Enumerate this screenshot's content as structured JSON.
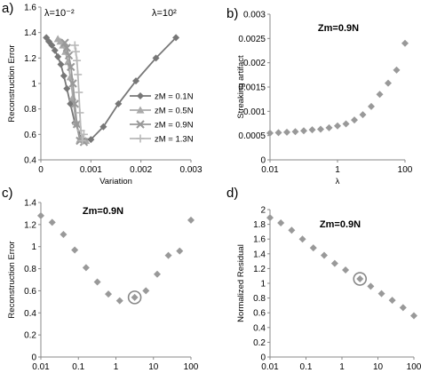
{
  "chart_data": [
    {
      "panel": "a)",
      "type": "line",
      "title": "",
      "xlabel": "Variation",
      "ylabel": "Reconstruction Error",
      "xlim": [
        0,
        0.003
      ],
      "ylim": [
        0.4,
        1.6
      ],
      "xticks": [
        "0",
        "0.001",
        "0.002",
        "0.003"
      ],
      "yticks": [
        "0.4",
        "0.6",
        "0.8",
        "1",
        "1.2",
        "1.4",
        "1.6"
      ],
      "annotations": [
        {
          "text": "λ=10⁻²",
          "pos": "top-left"
        },
        {
          "text": "λ=10²",
          "pos": "top-right"
        }
      ],
      "legend_position": "right",
      "colors": {
        "zM = 0.1N": "#777777",
        "zM = 0.5N": "#aaaaaa",
        "zM = 0.9N": "#999999",
        "zM = 1.3N": "#b9b9b9"
      },
      "series": [
        {
          "name": "zM = 0.1N",
          "marker": "diamond",
          "x": [
            0.00011,
            0.00016,
            0.00022,
            0.00028,
            0.00034,
            0.0004,
            0.00046,
            0.00052,
            0.00059,
            0.00068,
            0.00082,
            0.001,
            0.00125,
            0.00155,
            0.0019,
            0.0023,
            0.0027
          ],
          "y": [
            1.36,
            1.33,
            1.3,
            1.26,
            1.21,
            1.15,
            1.06,
            0.96,
            0.84,
            0.69,
            0.57,
            0.56,
            0.66,
            0.84,
            1.02,
            1.2,
            1.36
          ]
        },
        {
          "name": "zM = 0.5N",
          "marker": "triangle",
          "x": [
            0.00034,
            0.00039,
            0.00044,
            0.00049,
            0.00054,
            0.00059,
            0.00064,
            0.0007,
            0.00078,
            0.0009
          ],
          "y": [
            1.35,
            1.33,
            1.3,
            1.25,
            1.17,
            1.05,
            0.89,
            0.7,
            0.56,
            0.55
          ]
        },
        {
          "name": "zM = 0.9N",
          "marker": "x",
          "x": [
            0.00048,
            0.00052,
            0.00056,
            0.0006,
            0.00064,
            0.00068,
            0.00072,
            0.00078,
            0.00086
          ],
          "y": [
            1.32,
            1.28,
            1.22,
            1.13,
            1.0,
            0.84,
            0.68,
            0.55,
            0.54
          ]
        },
        {
          "name": "zM = 1.3N",
          "marker": "plus",
          "x": [
            0.00068,
            0.0007,
            0.00072,
            0.00074,
            0.00076,
            0.00078,
            0.0008,
            0.00083,
            0.00086
          ],
          "y": [
            1.3,
            1.25,
            1.18,
            1.07,
            0.93,
            0.77,
            0.63,
            0.55,
            0.6
          ]
        }
      ]
    },
    {
      "panel": "b)",
      "type": "scatter",
      "title": "Zm=0.9N",
      "xlabel": "λ",
      "ylabel": "Streaking artifact",
      "xscale": "log",
      "xlim": [
        0.01,
        100
      ],
      "ylim": [
        0,
        0.003
      ],
      "xticks": [
        "0.01",
        "1",
        "100"
      ],
      "yticks": [
        "0",
        "0.0005",
        "0.001",
        "0.0015",
        "0.002",
        "0.0025",
        "0.003"
      ],
      "x": [
        0.01,
        0.0178,
        0.0316,
        0.0562,
        0.1,
        0.178,
        0.316,
        0.562,
        1,
        1.78,
        3.16,
        5.62,
        10,
        17.8,
        31.6,
        56.2,
        100
      ],
      "y": [
        0.00055,
        0.00056,
        0.00057,
        0.00058,
        0.0006,
        0.00062,
        0.00063,
        0.00066,
        0.0007,
        0.00074,
        0.00082,
        0.00093,
        0.0011,
        0.00135,
        0.00158,
        0.00185,
        0.0024
      ]
    },
    {
      "panel": "c)",
      "type": "scatter",
      "title": "Zm=0.9N",
      "xlabel": "λ",
      "ylabel": "Reconstruction Error",
      "xscale": "log",
      "xlim": [
        0.01,
        100
      ],
      "ylim": [
        0,
        1.4
      ],
      "xticks": [
        "0.01",
        "0.1",
        "1",
        "10",
        "100"
      ],
      "yticks": [
        "0",
        "0.2",
        "0.4",
        "0.6",
        "0.8",
        "1",
        "1.2",
        "1.4"
      ],
      "highlight_index": 8,
      "x": [
        0.01,
        0.02,
        0.04,
        0.08,
        0.16,
        0.32,
        0.63,
        1.26,
        3.16,
        6.3,
        12.6,
        25,
        50,
        100
      ],
      "y": [
        1.28,
        1.22,
        1.11,
        0.97,
        0.81,
        0.68,
        0.57,
        0.51,
        0.54,
        0.6,
        0.75,
        0.92,
        0.96,
        1.24
      ]
    },
    {
      "panel": "d)",
      "type": "scatter",
      "title": "Zm=0.9N",
      "xlabel": "λ",
      "ylabel": "Normalized Residual",
      "xscale": "log",
      "xlim": [
        0.01,
        100
      ],
      "ylim": [
        0,
        2
      ],
      "xticks": [
        "0.01",
        "0.1",
        "1",
        "10",
        "100"
      ],
      "yticks": [
        "0",
        "0.2",
        "0.4",
        "0.6",
        "0.8",
        "1",
        "1.2",
        "1.4",
        "1.6",
        "1.8",
        "2"
      ],
      "highlight_index": 8,
      "x": [
        0.01,
        0.02,
        0.04,
        0.08,
        0.16,
        0.32,
        0.63,
        1.26,
        3.16,
        6.3,
        12.6,
        25,
        50,
        100
      ],
      "y": [
        1.89,
        1.82,
        1.72,
        1.6,
        1.48,
        1.38,
        1.27,
        1.18,
        1.06,
        0.96,
        0.86,
        0.77,
        0.67,
        0.56
      ]
    }
  ]
}
